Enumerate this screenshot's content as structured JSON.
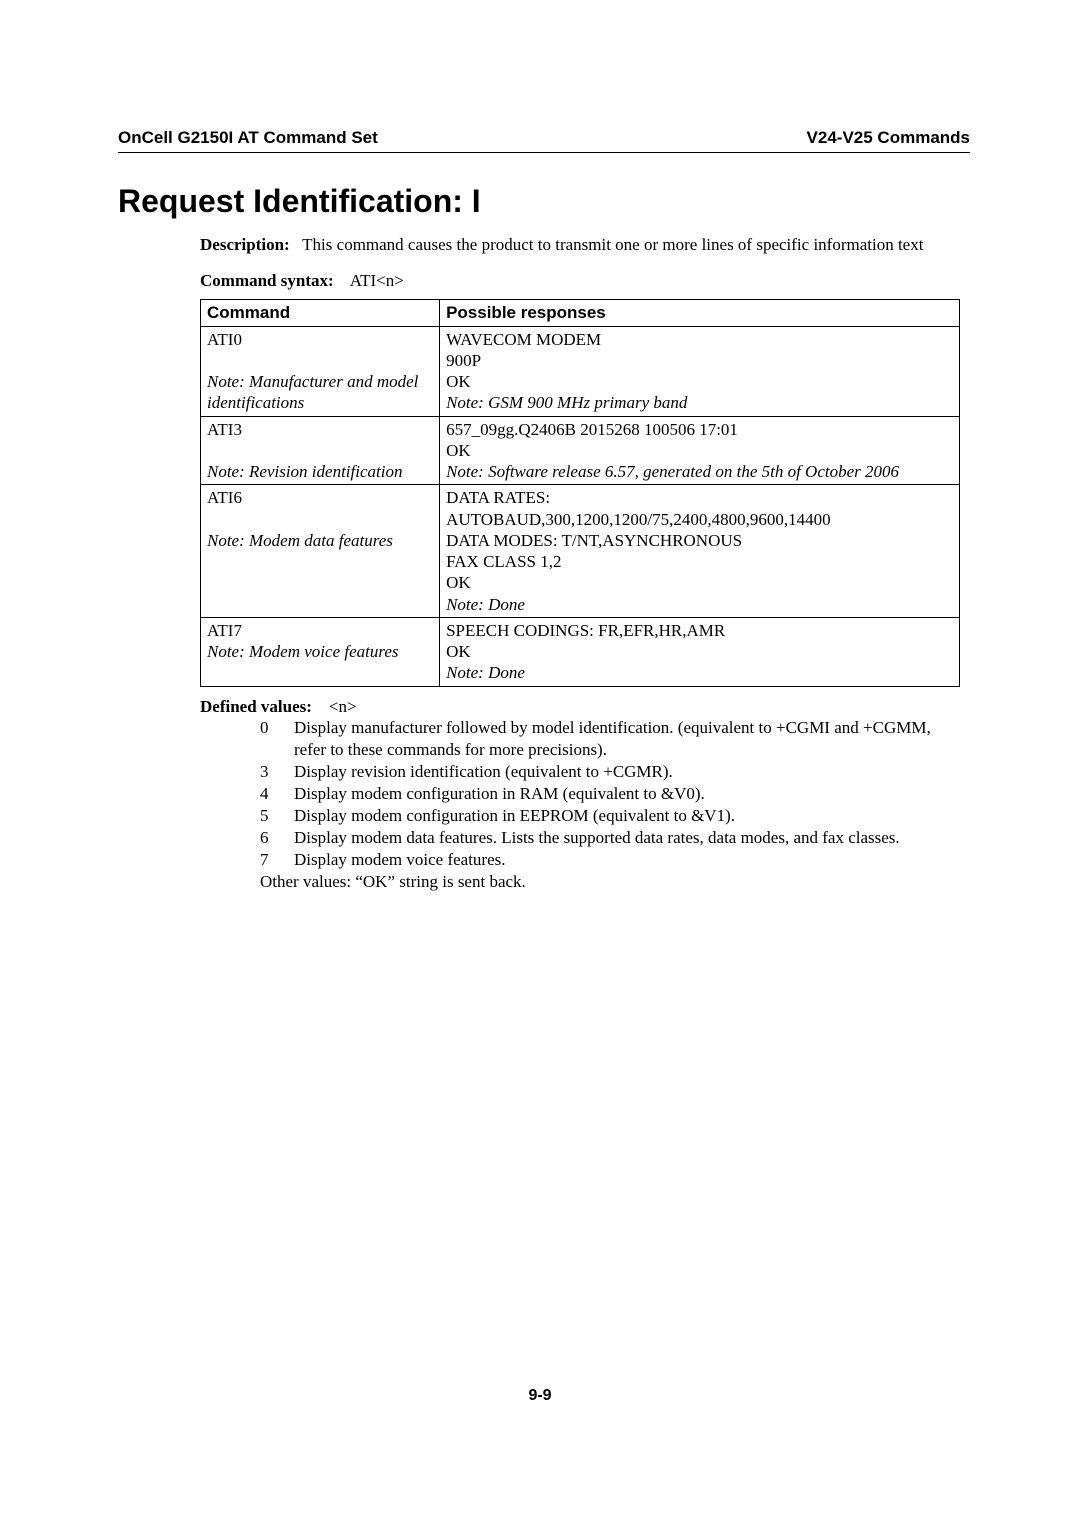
{
  "header": {
    "left": "OnCell G2150I AT Command Set",
    "right": "V24-V25 Commands"
  },
  "title": "Request Identification: I",
  "description_label": "Description:",
  "description_text": "This command causes the product to transmit one or more lines of specific information text",
  "syntax_label": "Command syntax:",
  "syntax_value": "ATI<n>",
  "table": {
    "headers": {
      "cmd": "Command",
      "resp": "Possible responses"
    },
    "rows": [
      {
        "cmd": "ATI0",
        "cmd_note": "Note: Manufacturer and model identifications",
        "resp_lines": [
          "WAVECOM MODEM",
          "900P",
          "OK"
        ],
        "resp_note": "Note: GSM 900 MHz primary band"
      },
      {
        "cmd": "ATI3",
        "cmd_note": "Note: Revision identification",
        "resp_lines": [
          "657_09gg.Q2406B 2015268 100506 17:01",
          "OK"
        ],
        "resp_note": "Note: Software release 6.57, generated on the 5th of October 2006"
      },
      {
        "cmd": "ATI6",
        "cmd_note": "Note: Modem data features",
        "resp_lines": [
          "DATA RATES:",
          "AUTOBAUD,300,1200,1200/75,2400,4800,9600,14400",
          "DATA MODES: T/NT,ASYNCHRONOUS",
          "FAX CLASS 1,2",
          "OK"
        ],
        "resp_note": "Note: Done"
      },
      {
        "cmd": "ATI7",
        "cmd_note": "Note: Modem voice features",
        "resp_lines": [
          "SPEECH CODINGS: FR,EFR,HR,AMR",
          "OK"
        ],
        "resp_note": "Note: Done"
      }
    ]
  },
  "defined": {
    "label": "Defined values:",
    "param": "<n>",
    "items": [
      {
        "n": "0",
        "text": "Display manufacturer followed by model identification. (equivalent to +CGMI and +CGMM, refer to these commands for more precisions)."
      },
      {
        "n": "3",
        "text": "Display revision identification (equivalent to +CGMR)."
      },
      {
        "n": "4",
        "text": " Display modem configuration in RAM (equivalent to &V0)."
      },
      {
        "n": "5",
        "text": "Display modem configuration in EEPROM (equivalent to &V1)."
      },
      {
        "n": "6",
        "text": "Display modem data features. Lists the supported data rates, data modes, and fax classes."
      },
      {
        "n": "7",
        "text": "Display modem voice features."
      }
    ],
    "other": "Other values:   “OK” string is sent back."
  },
  "page_number": "9-9"
}
